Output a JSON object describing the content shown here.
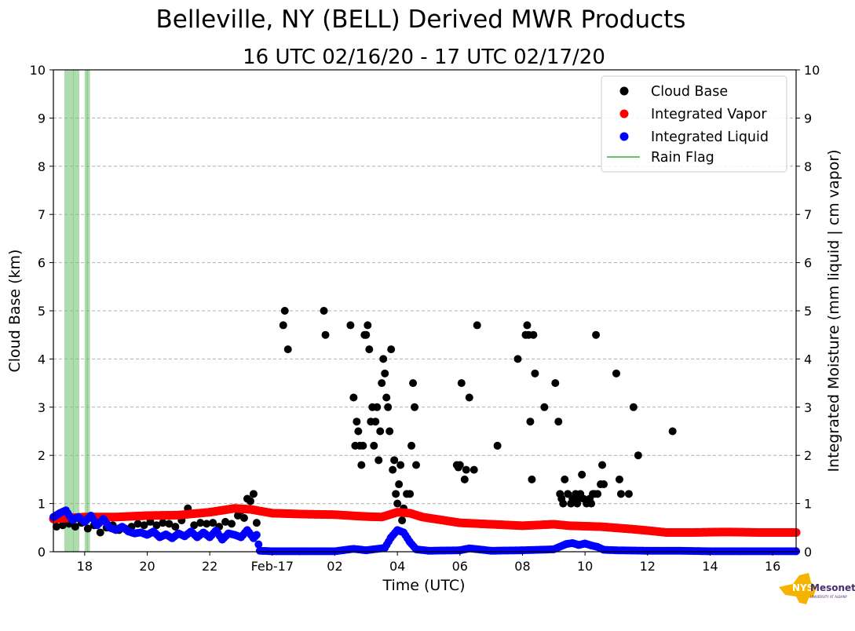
{
  "chart_data": {
    "type": "scatter",
    "title": "Belleville, NY (BELL) Derived MWR Products",
    "subtitle": "16 UTC 02/16/20 - 17 UTC 02/17/20",
    "xlabel": "Time (UTC)",
    "ylabel_left": "Cloud Base (km)",
    "ylabel_right": "Integrated Moisture (mm liquid | cm vapor)",
    "xlim_hours_since_1600_utc_02_16": [
      1.0,
      24.75
    ],
    "ylim": [
      0,
      10
    ],
    "y_ticks": [
      "0",
      "1",
      "2",
      "3",
      "4",
      "5",
      "6",
      "7",
      "8",
      "9",
      "10"
    ],
    "x_ticks": [
      {
        "h": 2,
        "label": "18"
      },
      {
        "h": 4,
        "label": "20"
      },
      {
        "h": 6,
        "label": "22"
      },
      {
        "h": 8,
        "label": "Feb-17"
      },
      {
        "h": 10,
        "label": "02"
      },
      {
        "h": 12,
        "label": "04"
      },
      {
        "h": 14,
        "label": "06"
      },
      {
        "h": 16,
        "label": "08"
      },
      {
        "h": 18,
        "label": "10"
      },
      {
        "h": 20,
        "label": "12"
      },
      {
        "h": 22,
        "label": "14"
      },
      {
        "h": 24,
        "label": "16"
      }
    ],
    "grid": true,
    "legend_position": "top-right",
    "legend": [
      "Cloud Base",
      "Integrated Vapor",
      "Integrated Liquid",
      "Rain Flag"
    ],
    "colors": {
      "cloud_base": "#000000",
      "vapor": "#ff0000",
      "liquid": "#0000ff",
      "rain": "#6bbf6b",
      "grid": "#b0b0b0"
    },
    "rain_flag_hours": [
      1.4,
      1.5,
      1.6,
      1.68,
      1.78,
      2.05,
      2.12
    ],
    "integrated_vapor": [
      [
        1.0,
        0.68
      ],
      [
        2.0,
        0.72
      ],
      [
        3.0,
        0.72
      ],
      [
        4.0,
        0.75
      ],
      [
        5.0,
        0.76
      ],
      [
        6.0,
        0.82
      ],
      [
        6.8,
        0.9
      ],
      [
        7.3,
        0.88
      ],
      [
        8.0,
        0.8
      ],
      [
        9.0,
        0.78
      ],
      [
        10.0,
        0.77
      ],
      [
        11.0,
        0.73
      ],
      [
        11.5,
        0.72
      ],
      [
        12.0,
        0.82
      ],
      [
        12.4,
        0.8
      ],
      [
        12.8,
        0.72
      ],
      [
        13.5,
        0.65
      ],
      [
        14.0,
        0.6
      ],
      [
        15.0,
        0.57
      ],
      [
        16.0,
        0.54
      ],
      [
        17.0,
        0.57
      ],
      [
        17.5,
        0.54
      ],
      [
        18.5,
        0.52
      ],
      [
        19.5,
        0.47
      ],
      [
        20.0,
        0.44
      ],
      [
        20.6,
        0.4
      ],
      [
        21.5,
        0.4
      ],
      [
        22.5,
        0.41
      ],
      [
        23.5,
        0.4
      ],
      [
        24.75,
        0.4
      ]
    ],
    "integrated_liquid": [
      [
        1.0,
        0.72
      ],
      [
        1.2,
        0.8
      ],
      [
        1.4,
        0.86
      ],
      [
        1.6,
        0.66
      ],
      [
        1.8,
        0.72
      ],
      [
        2.0,
        0.62
      ],
      [
        2.2,
        0.75
      ],
      [
        2.4,
        0.55
      ],
      [
        2.6,
        0.68
      ],
      [
        2.8,
        0.5
      ],
      [
        3.0,
        0.45
      ],
      [
        3.2,
        0.52
      ],
      [
        3.4,
        0.42
      ],
      [
        3.6,
        0.38
      ],
      [
        3.8,
        0.4
      ],
      [
        4.0,
        0.35
      ],
      [
        4.2,
        0.42
      ],
      [
        4.4,
        0.3
      ],
      [
        4.6,
        0.36
      ],
      [
        4.8,
        0.28
      ],
      [
        5.0,
        0.38
      ],
      [
        5.2,
        0.32
      ],
      [
        5.4,
        0.42
      ],
      [
        5.6,
        0.3
      ],
      [
        5.8,
        0.4
      ],
      [
        6.0,
        0.3
      ],
      [
        6.2,
        0.44
      ],
      [
        6.4,
        0.25
      ],
      [
        6.6,
        0.38
      ],
      [
        6.8,
        0.35
      ],
      [
        7.0,
        0.3
      ],
      [
        7.2,
        0.45
      ],
      [
        7.4,
        0.28
      ],
      [
        7.5,
        0.35
      ],
      [
        7.6,
        0.02
      ],
      [
        8.0,
        0.01
      ],
      [
        9.0,
        0.01
      ],
      [
        10.0,
        0.01
      ],
      [
        10.6,
        0.06
      ],
      [
        11.0,
        0.03
      ],
      [
        11.6,
        0.08
      ],
      [
        11.8,
        0.3
      ],
      [
        12.0,
        0.45
      ],
      [
        12.2,
        0.4
      ],
      [
        12.4,
        0.2
      ],
      [
        12.6,
        0.05
      ],
      [
        13.0,
        0.02
      ],
      [
        14.0,
        0.03
      ],
      [
        14.3,
        0.07
      ],
      [
        15.0,
        0.02
      ],
      [
        16.0,
        0.03
      ],
      [
        17.0,
        0.05
      ],
      [
        17.4,
        0.16
      ],
      [
        17.6,
        0.18
      ],
      [
        17.8,
        0.14
      ],
      [
        18.0,
        0.17
      ],
      [
        18.2,
        0.13
      ],
      [
        18.4,
        0.1
      ],
      [
        18.6,
        0.04
      ],
      [
        19.0,
        0.03
      ],
      [
        20.0,
        0.02
      ],
      [
        21.0,
        0.02
      ],
      [
        22.0,
        0.01
      ],
      [
        23.0,
        0.01
      ],
      [
        24.0,
        0.01
      ],
      [
        24.75,
        0.01
      ]
    ],
    "cloud_base": [
      [
        1.1,
        0.52
      ],
      [
        1.3,
        0.55
      ],
      [
        1.5,
        0.58
      ],
      [
        1.7,
        0.52
      ],
      [
        1.9,
        0.6
      ],
      [
        2.1,
        0.48
      ],
      [
        2.3,
        0.55
      ],
      [
        2.5,
        0.4
      ],
      [
        2.7,
        0.5
      ],
      [
        2.9,
        0.55
      ],
      [
        3.1,
        0.45
      ],
      [
        3.3,
        0.48
      ],
      [
        3.5,
        0.52
      ],
      [
        3.7,
        0.58
      ],
      [
        3.9,
        0.55
      ],
      [
        4.1,
        0.62
      ],
      [
        4.3,
        0.55
      ],
      [
        4.5,
        0.6
      ],
      [
        4.7,
        0.58
      ],
      [
        4.9,
        0.52
      ],
      [
        5.1,
        0.65
      ],
      [
        5.3,
        0.9
      ],
      [
        5.5,
        0.55
      ],
      [
        5.7,
        0.6
      ],
      [
        5.9,
        0.58
      ],
      [
        6.1,
        0.6
      ],
      [
        6.3,
        0.52
      ],
      [
        6.5,
        0.62
      ],
      [
        6.7,
        0.58
      ],
      [
        6.9,
        0.75
      ],
      [
        7.0,
        0.85
      ],
      [
        7.1,
        0.7
      ],
      [
        7.2,
        1.1
      ],
      [
        7.3,
        1.05
      ],
      [
        7.4,
        1.2
      ],
      [
        7.5,
        0.6
      ],
      [
        8.35,
        4.7
      ],
      [
        8.4,
        5.0
      ],
      [
        8.5,
        4.2
      ],
      [
        9.65,
        5.0
      ],
      [
        9.7,
        4.5
      ],
      [
        10.5,
        4.7
      ],
      [
        10.6,
        3.2
      ],
      [
        10.65,
        2.2
      ],
      [
        10.7,
        2.7
      ],
      [
        10.75,
        2.5
      ],
      [
        10.8,
        2.2
      ],
      [
        10.85,
        1.8
      ],
      [
        10.9,
        2.2
      ],
      [
        10.95,
        4.5
      ],
      [
        11.0,
        4.5
      ],
      [
        11.05,
        4.7
      ],
      [
        11.1,
        4.2
      ],
      [
        11.15,
        2.7
      ],
      [
        11.2,
        3.0
      ],
      [
        11.25,
        2.2
      ],
      [
        11.3,
        2.7
      ],
      [
        11.35,
        3.0
      ],
      [
        11.4,
        1.9
      ],
      [
        11.45,
        2.5
      ],
      [
        11.5,
        3.5
      ],
      [
        11.55,
        4.0
      ],
      [
        11.6,
        3.7
      ],
      [
        11.65,
        3.2
      ],
      [
        11.7,
        3.0
      ],
      [
        11.75,
        2.5
      ],
      [
        11.8,
        4.2
      ],
      [
        11.85,
        1.7
      ],
      [
        11.9,
        1.9
      ],
      [
        11.95,
        1.2
      ],
      [
        12.0,
        1.0
      ],
      [
        12.05,
        1.4
      ],
      [
        12.1,
        1.8
      ],
      [
        12.15,
        0.65
      ],
      [
        12.2,
        0.9
      ],
      [
        12.25,
        0.8
      ],
      [
        12.3,
        1.2
      ],
      [
        12.4,
        1.2
      ],
      [
        12.45,
        2.2
      ],
      [
        12.5,
        3.5
      ],
      [
        12.55,
        3.0
      ],
      [
        12.6,
        1.8
      ],
      [
        13.9,
        1.8
      ],
      [
        13.95,
        1.75
      ],
      [
        14.0,
        1.8
      ],
      [
        14.05,
        3.5
      ],
      [
        14.15,
        1.5
      ],
      [
        14.2,
        1.7
      ],
      [
        14.3,
        3.2
      ],
      [
        14.45,
        1.7
      ],
      [
        14.55,
        4.7
      ],
      [
        15.2,
        2.2
      ],
      [
        15.85,
        4.0
      ],
      [
        16.1,
        4.5
      ],
      [
        16.15,
        4.7
      ],
      [
        16.2,
        4.5
      ],
      [
        16.25,
        2.7
      ],
      [
        16.3,
        1.5
      ],
      [
        16.35,
        4.5
      ],
      [
        16.4,
        3.7
      ],
      [
        16.7,
        3.0
      ],
      [
        17.05,
        3.5
      ],
      [
        17.15,
        2.7
      ],
      [
        17.2,
        1.2
      ],
      [
        17.25,
        1.1
      ],
      [
        17.3,
        1.0
      ],
      [
        17.35,
        1.5
      ],
      [
        17.45,
        1.2
      ],
      [
        17.55,
        1.0
      ],
      [
        17.6,
        1.1
      ],
      [
        17.7,
        1.2
      ],
      [
        17.75,
        1.0
      ],
      [
        17.8,
        1.1
      ],
      [
        17.85,
        1.2
      ],
      [
        17.9,
        1.6
      ],
      [
        17.95,
        1.1
      ],
      [
        18.05,
        1.0
      ],
      [
        18.15,
        1.1
      ],
      [
        18.2,
        1.0
      ],
      [
        18.25,
        1.2
      ],
      [
        18.3,
        1.2
      ],
      [
        18.35,
        4.5
      ],
      [
        18.4,
        1.2
      ],
      [
        18.5,
        1.4
      ],
      [
        18.55,
        1.8
      ],
      [
        18.6,
        1.4
      ],
      [
        19.0,
        3.7
      ],
      [
        19.1,
        1.5
      ],
      [
        19.15,
        1.2
      ],
      [
        19.4,
        1.2
      ],
      [
        19.55,
        3.0
      ],
      [
        19.7,
        2.0
      ],
      [
        20.8,
        2.5
      ]
    ]
  },
  "logo": {
    "text_brand": "NYS",
    "text_name": "Mesonet",
    "text_sub": "UNIVERSITY AT ALBANY"
  }
}
